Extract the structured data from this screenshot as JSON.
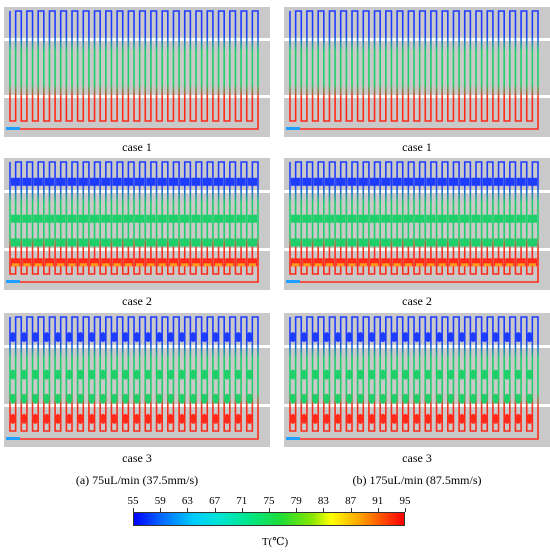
{
  "panels": [
    {
      "col": 0,
      "row": 0,
      "case": "case 1",
      "type": 1
    },
    {
      "col": 1,
      "row": 0,
      "case": "case 1",
      "type": 1
    },
    {
      "col": 0,
      "row": 1,
      "case": "case 2",
      "type": 2
    },
    {
      "col": 1,
      "row": 1,
      "case": "case 2",
      "type": 2
    },
    {
      "col": 0,
      "row": 2,
      "case": "case 3",
      "type": 3
    },
    {
      "col": 1,
      "row": 2,
      "case": "case 3",
      "type": 3
    }
  ],
  "captions": {
    "left": "(a) 75uL/min (37.5mm/s)",
    "right": "(b) 175uL/min (87.5mm/s)"
  },
  "colorbar": {
    "ticks": [
      "55",
      "59",
      "63",
      "67",
      "71",
      "75",
      "79",
      "83",
      "87",
      "91",
      "95"
    ],
    "title": "T(℃)",
    "colors": [
      "#0000ff",
      "#00ccff",
      "#00e68c",
      "#22dd33",
      "#ffff00",
      "#ffaa00",
      "#ff0000"
    ]
  },
  "colors": {
    "cold": "#1e3cff",
    "cold_light": "#1fa0ff",
    "mid": "#1fd06a",
    "hot": "#ff2a1a",
    "hot_orange": "#ff9a1a",
    "background": "#c9c9c9",
    "band": "#ffffff"
  }
}
